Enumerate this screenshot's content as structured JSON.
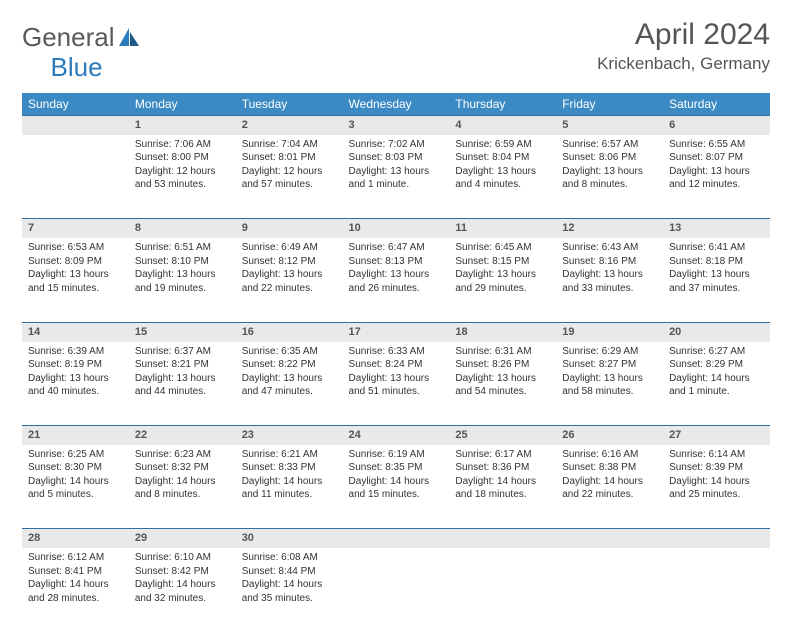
{
  "logo": {
    "text1": "General",
    "text2": "Blue"
  },
  "title": "April 2024",
  "location": "Krickenbach, Germany",
  "colors": {
    "header_bg": "#3b8ac4",
    "accent": "#2f6fa3",
    "daynum_bg": "#e9e9e9"
  },
  "weekdays": [
    "Sunday",
    "Monday",
    "Tuesday",
    "Wednesday",
    "Thursday",
    "Friday",
    "Saturday"
  ],
  "start_offset": 1,
  "days": [
    {
      "n": 1,
      "sr": "7:06 AM",
      "ss": "8:00 PM",
      "dl": "12 hours and 53 minutes."
    },
    {
      "n": 2,
      "sr": "7:04 AM",
      "ss": "8:01 PM",
      "dl": "12 hours and 57 minutes."
    },
    {
      "n": 3,
      "sr": "7:02 AM",
      "ss": "8:03 PM",
      "dl": "13 hours and 1 minute."
    },
    {
      "n": 4,
      "sr": "6:59 AM",
      "ss": "8:04 PM",
      "dl": "13 hours and 4 minutes."
    },
    {
      "n": 5,
      "sr": "6:57 AM",
      "ss": "8:06 PM",
      "dl": "13 hours and 8 minutes."
    },
    {
      "n": 6,
      "sr": "6:55 AM",
      "ss": "8:07 PM",
      "dl": "13 hours and 12 minutes."
    },
    {
      "n": 7,
      "sr": "6:53 AM",
      "ss": "8:09 PM",
      "dl": "13 hours and 15 minutes."
    },
    {
      "n": 8,
      "sr": "6:51 AM",
      "ss": "8:10 PM",
      "dl": "13 hours and 19 minutes."
    },
    {
      "n": 9,
      "sr": "6:49 AM",
      "ss": "8:12 PM",
      "dl": "13 hours and 22 minutes."
    },
    {
      "n": 10,
      "sr": "6:47 AM",
      "ss": "8:13 PM",
      "dl": "13 hours and 26 minutes."
    },
    {
      "n": 11,
      "sr": "6:45 AM",
      "ss": "8:15 PM",
      "dl": "13 hours and 29 minutes."
    },
    {
      "n": 12,
      "sr": "6:43 AM",
      "ss": "8:16 PM",
      "dl": "13 hours and 33 minutes."
    },
    {
      "n": 13,
      "sr": "6:41 AM",
      "ss": "8:18 PM",
      "dl": "13 hours and 37 minutes."
    },
    {
      "n": 14,
      "sr": "6:39 AM",
      "ss": "8:19 PM",
      "dl": "13 hours and 40 minutes."
    },
    {
      "n": 15,
      "sr": "6:37 AM",
      "ss": "8:21 PM",
      "dl": "13 hours and 44 minutes."
    },
    {
      "n": 16,
      "sr": "6:35 AM",
      "ss": "8:22 PM",
      "dl": "13 hours and 47 minutes."
    },
    {
      "n": 17,
      "sr": "6:33 AM",
      "ss": "8:24 PM",
      "dl": "13 hours and 51 minutes."
    },
    {
      "n": 18,
      "sr": "6:31 AM",
      "ss": "8:26 PM",
      "dl": "13 hours and 54 minutes."
    },
    {
      "n": 19,
      "sr": "6:29 AM",
      "ss": "8:27 PM",
      "dl": "13 hours and 58 minutes."
    },
    {
      "n": 20,
      "sr": "6:27 AM",
      "ss": "8:29 PM",
      "dl": "14 hours and 1 minute."
    },
    {
      "n": 21,
      "sr": "6:25 AM",
      "ss": "8:30 PM",
      "dl": "14 hours and 5 minutes."
    },
    {
      "n": 22,
      "sr": "6:23 AM",
      "ss": "8:32 PM",
      "dl": "14 hours and 8 minutes."
    },
    {
      "n": 23,
      "sr": "6:21 AM",
      "ss": "8:33 PM",
      "dl": "14 hours and 11 minutes."
    },
    {
      "n": 24,
      "sr": "6:19 AM",
      "ss": "8:35 PM",
      "dl": "14 hours and 15 minutes."
    },
    {
      "n": 25,
      "sr": "6:17 AM",
      "ss": "8:36 PM",
      "dl": "14 hours and 18 minutes."
    },
    {
      "n": 26,
      "sr": "6:16 AM",
      "ss": "8:38 PM",
      "dl": "14 hours and 22 minutes."
    },
    {
      "n": 27,
      "sr": "6:14 AM",
      "ss": "8:39 PM",
      "dl": "14 hours and 25 minutes."
    },
    {
      "n": 28,
      "sr": "6:12 AM",
      "ss": "8:41 PM",
      "dl": "14 hours and 28 minutes."
    },
    {
      "n": 29,
      "sr": "6:10 AM",
      "ss": "8:42 PM",
      "dl": "14 hours and 32 minutes."
    },
    {
      "n": 30,
      "sr": "6:08 AM",
      "ss": "8:44 PM",
      "dl": "14 hours and 35 minutes."
    }
  ],
  "labels": {
    "sunrise": "Sunrise:",
    "sunset": "Sunset:",
    "daylight": "Daylight:"
  }
}
